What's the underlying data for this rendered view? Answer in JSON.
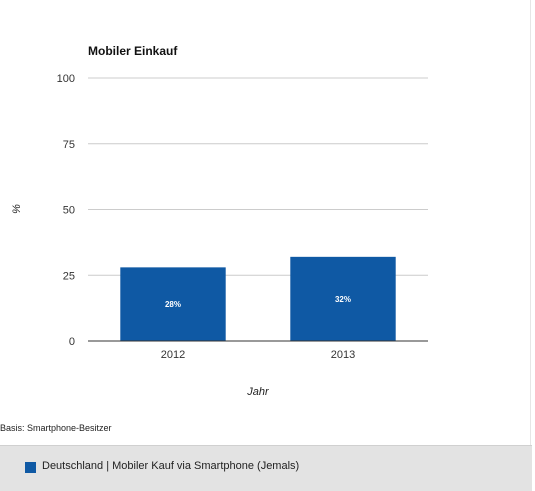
{
  "chart_data": {
    "type": "bar",
    "title": "Mobiler Einkauf",
    "categories": [
      "2012",
      "2013"
    ],
    "series": [
      {
        "name": "Deutschland | Mobiler Kauf via Smartphone (Jemals)",
        "values": [
          28,
          32
        ],
        "data_labels": [
          "28%",
          "32%"
        ],
        "color": "#0f59a4"
      }
    ],
    "xlabel": "Jahr",
    "ylabel": "%",
    "ylim": [
      0,
      100
    ],
    "yticks": [
      0,
      25,
      50,
      75,
      100
    ],
    "grid": true,
    "legend_position": "bottom"
  },
  "footnote": "Basis: Smartphone-Besitzer",
  "colors": {
    "gridline": "#cccccc",
    "axis": "#333333",
    "legend_background": "#e3e3e3"
  }
}
